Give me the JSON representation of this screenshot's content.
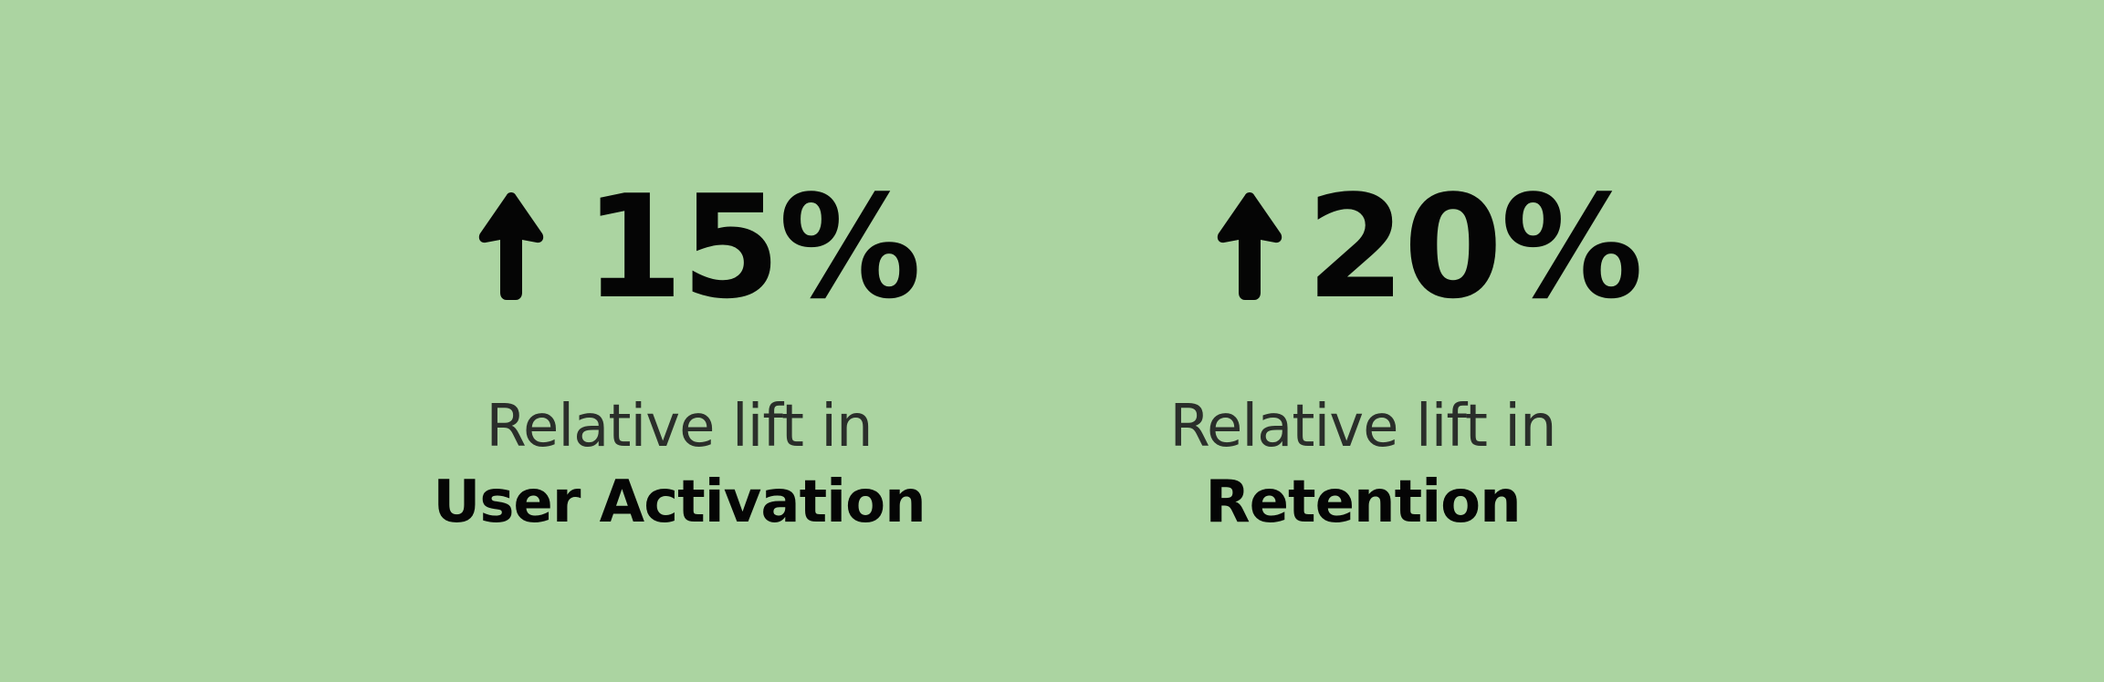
{
  "colors": {
    "background": "#abd4a1",
    "value_text": "#050505",
    "caption_text": "#2a2e2a",
    "caption_emphasis": "#050505"
  },
  "stats": [
    {
      "icon": "up-arrow-icon",
      "value": "15%",
      "caption_line1": "Relative lift in",
      "caption_line2": "User Activation"
    },
    {
      "icon": "up-arrow-icon",
      "value": "20%",
      "caption_line1": "Relative lift in",
      "caption_line2": "Retention"
    }
  ]
}
